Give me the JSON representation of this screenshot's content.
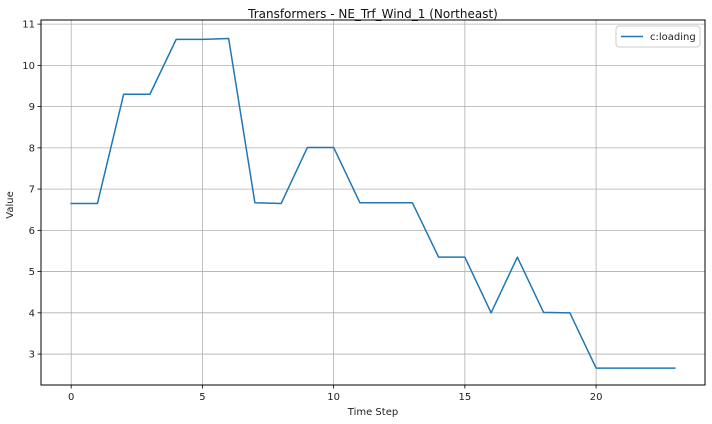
{
  "chart_data": {
    "type": "line",
    "title": "Transformers - NE_Trf_Wind_1 (Northeast)",
    "xlabel": "Time Step",
    "ylabel": "Value",
    "xlim": [
      -1.15,
      24.15
    ],
    "ylim": [
      2.25,
      11.1
    ],
    "xticks": [
      0,
      5,
      10,
      15,
      20
    ],
    "yticks": [
      3,
      4,
      5,
      6,
      7,
      8,
      9,
      10,
      11
    ],
    "grid": true,
    "legend": "top-right",
    "series": [
      {
        "name": "c:loading",
        "color": "#1f77b4",
        "x": [
          0,
          1,
          2,
          3,
          4,
          5,
          6,
          7,
          8,
          9,
          10,
          11,
          12,
          13,
          14,
          15,
          16,
          17,
          18,
          19,
          20,
          21,
          22,
          23
        ],
        "y": [
          6.65,
          6.65,
          9.3,
          9.3,
          10.63,
          10.63,
          10.65,
          6.67,
          6.65,
          8.01,
          8.01,
          6.67,
          6.67,
          6.67,
          5.35,
          5.35,
          4.0,
          5.35,
          4.01,
          4.0,
          2.66,
          2.66,
          2.66,
          2.66
        ]
      }
    ]
  }
}
